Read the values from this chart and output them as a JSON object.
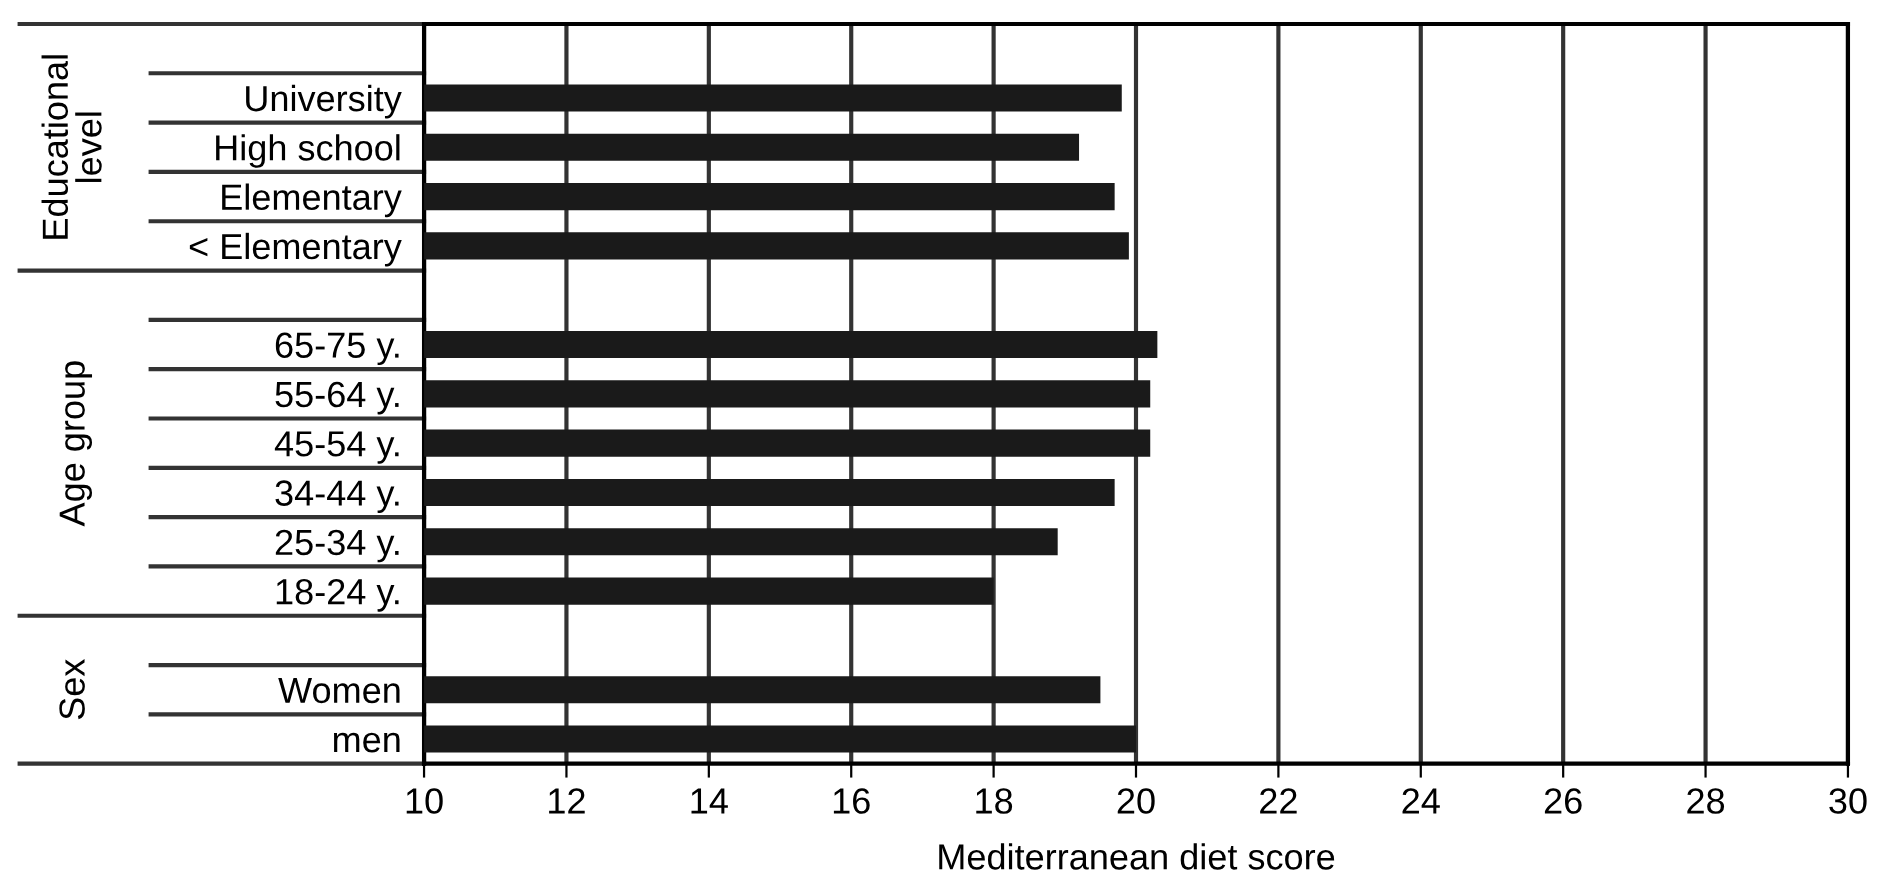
{
  "chart_data": {
    "type": "bar",
    "orientation": "horizontal",
    "xlabel": "Mediterranean diet score",
    "categories": [
      null,
      "University",
      "High school",
      "Elementary",
      "< Elementary",
      null,
      "65-75 y.",
      "55-64 y.",
      "45-54 y.",
      "34-44 y.",
      "25-34 y.",
      "18-24 y.",
      null,
      "Women",
      "men"
    ],
    "values": [
      null,
      19.8,
      19.2,
      19.7,
      19.9,
      null,
      20.3,
      20.2,
      20.2,
      19.7,
      18.9,
      18.0,
      null,
      19.5,
      20.0
    ],
    "color": "#1a1a1a",
    "xlim": [
      10,
      30
    ],
    "xticks": [
      10,
      12,
      14,
      16,
      18,
      20,
      22,
      24,
      26,
      28,
      30
    ],
    "grid": "x",
    "annotations": [
      "Educational\nlevel",
      "Age group",
      "Sex"
    ]
  }
}
